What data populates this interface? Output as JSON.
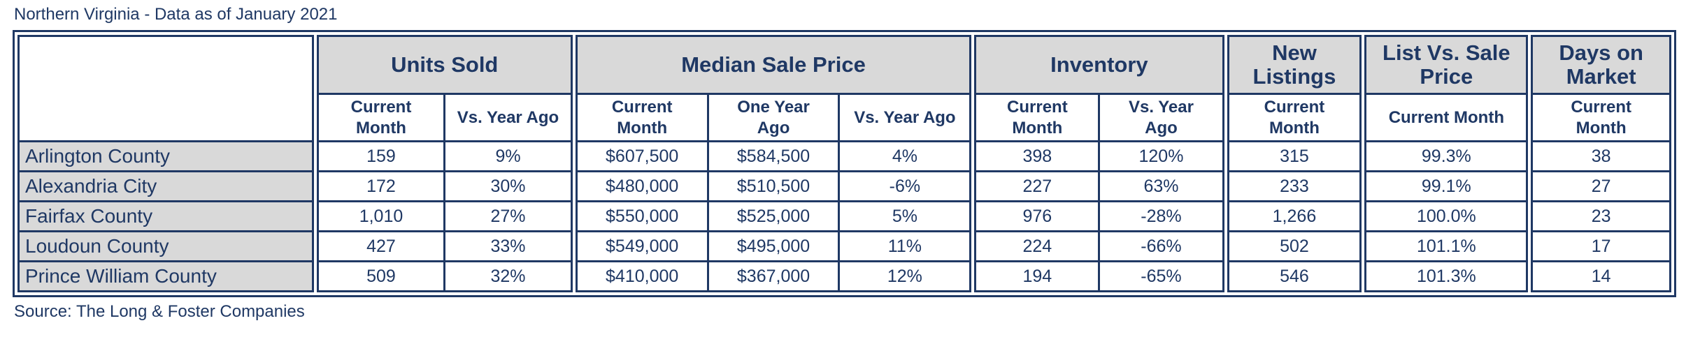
{
  "title": "Northern Virginia - Data as of January 2021",
  "source": "Source: The Long & Foster Companies",
  "colors": {
    "navy_text": "#1F3864",
    "border": "#1F3864",
    "header_fill": "#D9D9D9",
    "row_label_fill": "#D9D9D9",
    "background": "#FFFFFF"
  },
  "chart_data": {
    "type": "table",
    "title": "Northern Virginia - Data as of January 2021",
    "column_groups": [
      {
        "label": "Units Sold",
        "sub": [
          "Current Month",
          "Vs. Year Ago"
        ]
      },
      {
        "label": "Median Sale Price",
        "sub": [
          "Current Month",
          "One Year Ago",
          "Vs. Year Ago"
        ]
      },
      {
        "label": "Inventory",
        "sub": [
          "Current Month",
          "Vs. Year Ago"
        ]
      },
      {
        "label": "New Listings",
        "sub": [
          "Current Month"
        ]
      },
      {
        "label": "List Vs. Sale Price",
        "sub": [
          "Current Month"
        ]
      },
      {
        "label": "Days on Market",
        "sub": [
          "Current Month"
        ]
      }
    ],
    "rows": [
      {
        "label": "Arlington County",
        "units": [
          "159",
          "9%"
        ],
        "price": [
          "$607,500",
          "$584,500",
          "4%"
        ],
        "inv": [
          "398",
          "120%"
        ],
        "newl": [
          "315"
        ],
        "lvsp": [
          "99.3%"
        ],
        "dom": [
          "38"
        ]
      },
      {
        "label": "Alexandria City",
        "units": [
          "172",
          "30%"
        ],
        "price": [
          "$480,000",
          "$510,500",
          "-6%"
        ],
        "inv": [
          "227",
          "63%"
        ],
        "newl": [
          "233"
        ],
        "lvsp": [
          "99.1%"
        ],
        "dom": [
          "27"
        ]
      },
      {
        "label": "Fairfax County",
        "units": [
          "1,010",
          "27%"
        ],
        "price": [
          "$550,000",
          "$525,000",
          "5%"
        ],
        "inv": [
          "976",
          "-28%"
        ],
        "newl": [
          "1,266"
        ],
        "lvsp": [
          "100.0%"
        ],
        "dom": [
          "23"
        ]
      },
      {
        "label": "Loudoun County",
        "units": [
          "427",
          "33%"
        ],
        "price": [
          "$549,000",
          "$495,000",
          "11%"
        ],
        "inv": [
          "224",
          "-66%"
        ],
        "newl": [
          "502"
        ],
        "lvsp": [
          "101.1%"
        ],
        "dom": [
          "17"
        ]
      },
      {
        "label": "Prince William County",
        "units": [
          "509",
          "32%"
        ],
        "price": [
          "$410,000",
          "$367,000",
          "12%"
        ],
        "inv": [
          "194",
          "-65%"
        ],
        "newl": [
          "546"
        ],
        "lvsp": [
          "101.3%"
        ],
        "dom": [
          "14"
        ]
      }
    ]
  }
}
